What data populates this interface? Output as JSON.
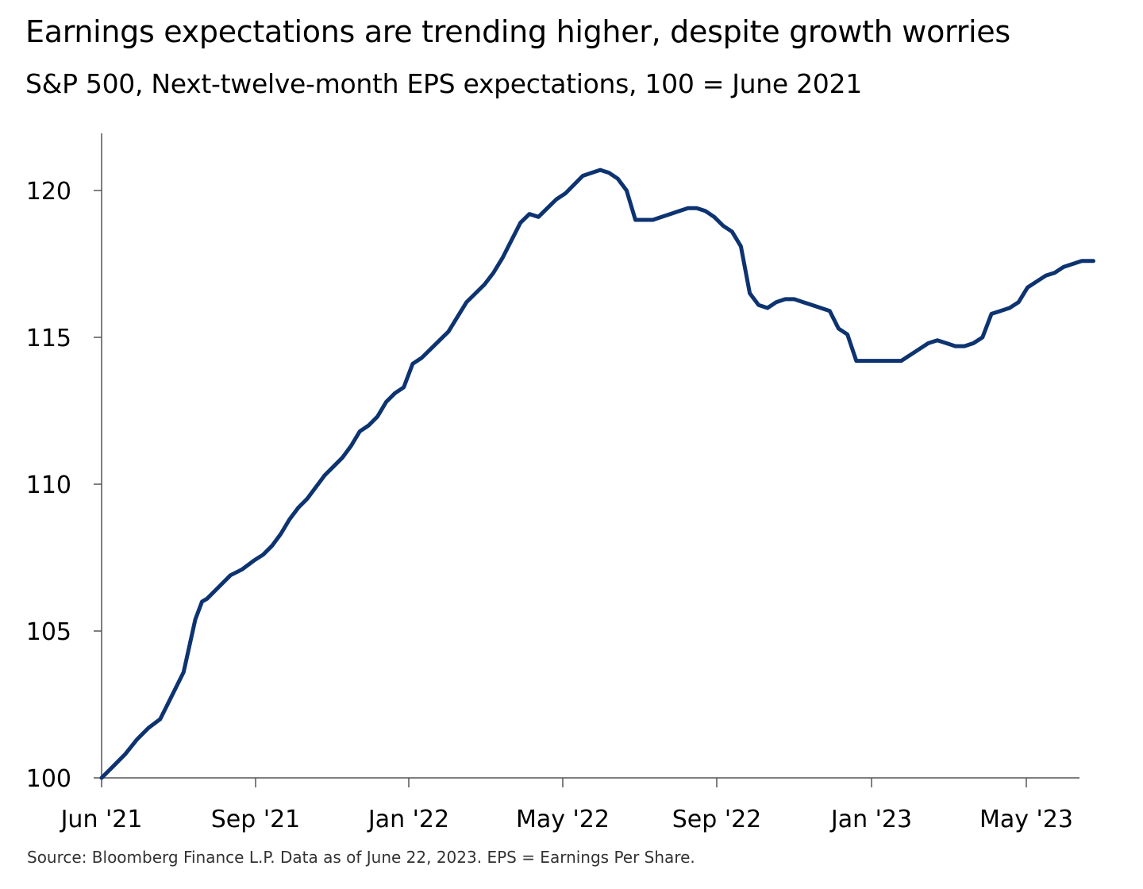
{
  "title": "Earnings expectations are trending higher, despite growth worries",
  "subtitle": "S&P 500, Next-twelve-month EPS expectations, 100 = June 2021",
  "source": "Source: Bloomberg Finance L.P. Data as of June 22, 2023. EPS = Earnings Per Share.",
  "colors": {
    "line": "#0d3370",
    "axis": "#555555"
  },
  "chart_data": {
    "type": "line",
    "title": "Earnings expectations are trending higher, despite growth worries",
    "subtitle": "S&P 500, Next-twelve-month EPS expectations, 100 = June 2021",
    "xlabel": "",
    "ylabel": "",
    "xlim": [
      "2021-06-01",
      "2023-06-30"
    ],
    "ylim": [
      100,
      122
    ],
    "yticks": [
      100,
      105,
      110,
      115,
      120
    ],
    "ytick_labels": [
      "100",
      "105",
      "110",
      "115",
      "120"
    ],
    "xticks": [
      "2021-06-01",
      "2021-09-01",
      "2022-01-01",
      "2022-05-01",
      "2022-09-01",
      "2023-01-01",
      "2023-05-01"
    ],
    "xtick_labels": [
      "Jun '21",
      "Sep '21",
      "Jan '22",
      "May '22",
      "Sep '22",
      "Jan '23",
      "May '23"
    ],
    "grid": false,
    "legend": "none",
    "series": [
      {
        "x": [
          "2021-06-01",
          "2021-06-08",
          "2021-06-15",
          "2021-06-22",
          "2021-06-29",
          "2021-07-06",
          "2021-07-13",
          "2021-07-20",
          "2021-07-27",
          "2021-07-31",
          "2021-08-03",
          "2021-08-10",
          "2021-08-17",
          "2021-08-24",
          "2021-08-31",
          "2021-09-07",
          "2021-09-14",
          "2021-09-21",
          "2021-09-28",
          "2021-10-05",
          "2021-10-12",
          "2021-10-19",
          "2021-10-26",
          "2021-11-02",
          "2021-11-09",
          "2021-11-16",
          "2021-11-23",
          "2021-11-30",
          "2021-12-07",
          "2021-12-14",
          "2021-12-21",
          "2021-12-28",
          "2022-01-04",
          "2022-01-11",
          "2022-01-18",
          "2022-01-25",
          "2022-02-01",
          "2022-02-08",
          "2022-02-15",
          "2022-02-22",
          "2022-03-01",
          "2022-03-08",
          "2022-03-15",
          "2022-03-22",
          "2022-03-29",
          "2022-04-05",
          "2022-04-12",
          "2022-04-19",
          "2022-04-26",
          "2022-05-03",
          "2022-05-10",
          "2022-05-17",
          "2022-05-24",
          "2022-05-31",
          "2022-06-07",
          "2022-06-14",
          "2022-06-21",
          "2022-06-28",
          "2022-07-05",
          "2022-07-12",
          "2022-07-19",
          "2022-07-26",
          "2022-08-02",
          "2022-08-09",
          "2022-08-16",
          "2022-08-23",
          "2022-08-30",
          "2022-09-06",
          "2022-09-13",
          "2022-09-20",
          "2022-09-27",
          "2022-10-04",
          "2022-10-11",
          "2022-10-18",
          "2022-10-25",
          "2022-11-01",
          "2022-11-08",
          "2022-11-15",
          "2022-11-22",
          "2022-11-29",
          "2022-12-06",
          "2022-12-13",
          "2022-12-20",
          "2022-12-27",
          "2023-01-03",
          "2023-01-10",
          "2023-01-17",
          "2023-01-24",
          "2023-01-31",
          "2023-02-07",
          "2023-02-14",
          "2023-02-21",
          "2023-02-28",
          "2023-03-07",
          "2023-03-14",
          "2023-03-21",
          "2023-03-28",
          "2023-04-04",
          "2023-04-11",
          "2023-04-18",
          "2023-04-25",
          "2023-05-02",
          "2023-05-09",
          "2023-05-16",
          "2023-05-23",
          "2023-05-30",
          "2023-06-06",
          "2023-06-13",
          "2023-06-22"
        ],
        "values": [
          100.0,
          100.4,
          100.8,
          101.3,
          101.7,
          102.0,
          102.8,
          103.6,
          105.4,
          106.0,
          106.1,
          106.5,
          106.9,
          107.1,
          107.4,
          107.6,
          107.9,
          108.3,
          108.8,
          109.2,
          109.5,
          109.9,
          110.3,
          110.6,
          110.9,
          111.3,
          111.8,
          112.0,
          112.3,
          112.8,
          113.1,
          113.3,
          114.1,
          114.3,
          114.6,
          114.9,
          115.2,
          115.7,
          116.2,
          116.5,
          116.8,
          117.2,
          117.7,
          118.3,
          118.9,
          119.2,
          119.1,
          119.4,
          119.7,
          119.9,
          120.2,
          120.5,
          120.6,
          120.7,
          120.6,
          120.4,
          120.0,
          119.0,
          119.0,
          119.0,
          119.1,
          119.2,
          119.3,
          119.4,
          119.4,
          119.3,
          119.1,
          118.8,
          118.6,
          118.1,
          116.5,
          116.1,
          116.0,
          116.2,
          116.3,
          116.3,
          116.2,
          116.1,
          116.0,
          115.9,
          115.3,
          115.1,
          114.2,
          114.2,
          114.2,
          114.2,
          114.2,
          114.2,
          114.4,
          114.6,
          114.8,
          114.9,
          114.8,
          114.7,
          114.7,
          114.8,
          115.0,
          115.8,
          115.9,
          116.0,
          116.2,
          116.7,
          116.9,
          117.1,
          117.2,
          117.4,
          117.5,
          117.6,
          117.6
        ]
      }
    ]
  }
}
